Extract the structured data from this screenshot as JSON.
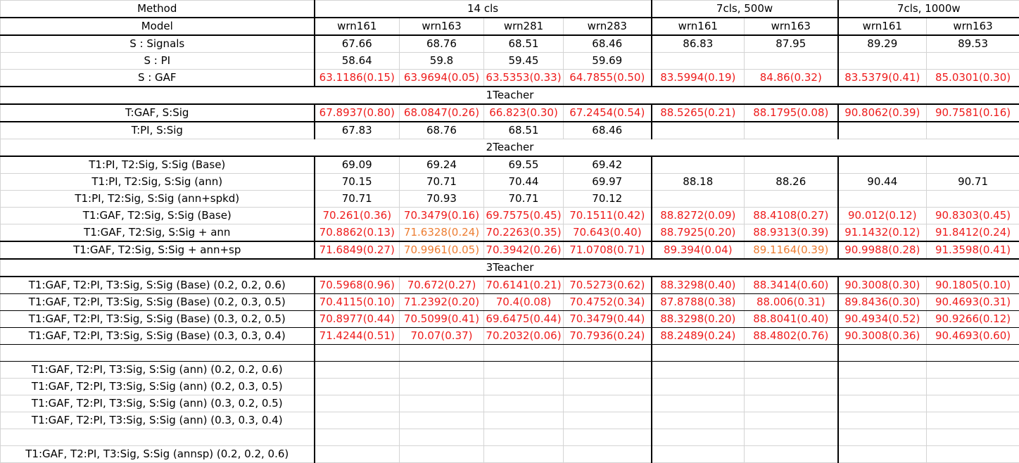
{
  "colors": {
    "red": "#ee1c1c",
    "orange": "#ed7d31",
    "black": "#000000"
  },
  "header": {
    "method_label": "Method",
    "group_14cls": "14 cls",
    "group_7cls_500w": "7cls, 500w",
    "group_7cls_1000w": "7cls, 1000w",
    "model_label": "Model",
    "models": [
      "wrn161",
      "wrn163",
      "wrn281",
      "wrn283",
      "wrn161",
      "wrn163",
      "wrn161",
      "wrn163"
    ]
  },
  "rows": [
    {
      "type": "data",
      "label": "S : Signals",
      "cells": [
        "67.66",
        "68.76",
        "68.51",
        "68.46",
        "86.83",
        "87.95",
        "89.29",
        "89.53"
      ],
      "colors": [
        "k",
        "k",
        "k",
        "k",
        "k",
        "k",
        "k",
        "k"
      ]
    },
    {
      "type": "data",
      "label": "S : PI",
      "cells": [
        "58.64",
        "59.8",
        "59.45",
        "59.69",
        "",
        "",
        "",
        ""
      ],
      "colors": [
        "k",
        "k",
        "k",
        "k",
        "k",
        "k",
        "k",
        "k"
      ]
    },
    {
      "type": "data",
      "label": "S : GAF",
      "cells": [
        "63.1186(0.15)",
        "63.9694(0.05)",
        "63.5353(0.33)",
        "64.7855(0.50)",
        "83.5994(0.19)",
        "84.86(0.32)",
        "83.5379(0.41)",
        "85.0301(0.30)"
      ],
      "colors": [
        "r",
        "r",
        "r",
        "r",
        "r",
        "r",
        "r",
        "r"
      ]
    },
    {
      "type": "section",
      "label": "1Teacher"
    },
    {
      "type": "data",
      "label": "T:GAF, S:Sig",
      "cells": [
        "67.8937(0.80)",
        "68.0847(0.26)",
        "66.823(0.30)",
        "67.2454(0.54)",
        "88.5265(0.21)",
        "88.1795(0.08)",
        "90.8062(0.39)",
        "90.7581(0.16)"
      ],
      "colors": [
        "r",
        "r",
        "r",
        "r",
        "r",
        "r",
        "r",
        "r"
      ]
    },
    {
      "type": "data",
      "label": "T:PI, S:Sig",
      "cells": [
        "67.83",
        "68.76",
        "68.51",
        "68.46",
        "",
        "",
        "",
        ""
      ],
      "colors": [
        "k",
        "k",
        "k",
        "k",
        "k",
        "k",
        "k",
        "k"
      ]
    },
    {
      "type": "section",
      "label": "2Teacher"
    },
    {
      "type": "data",
      "label": "T1:PI, T2:Sig, S:Sig (Base)",
      "cells": [
        "69.09",
        "69.24",
        "69.55",
        "69.42",
        "",
        "",
        "",
        ""
      ],
      "colors": [
        "k",
        "k",
        "k",
        "k",
        "k",
        "k",
        "k",
        "k"
      ]
    },
    {
      "type": "data",
      "label": "T1:PI, T2:Sig, S:Sig (ann)",
      "cells": [
        "70.15",
        "70.71",
        "70.44",
        "69.97",
        "88.18",
        "88.26",
        "90.44",
        "90.71"
      ],
      "colors": [
        "k",
        "k",
        "k",
        "k",
        "k",
        "k",
        "k",
        "k"
      ]
    },
    {
      "type": "data",
      "label": "T1:PI, T2:Sig, S:Sig (ann+spkd)",
      "cells": [
        "70.71",
        "70.93",
        "70.71",
        "70.12",
        "",
        "",
        "",
        ""
      ],
      "colors": [
        "k",
        "k",
        "k",
        "k",
        "k",
        "k",
        "k",
        "k"
      ]
    },
    {
      "type": "data",
      "label": "T1:GAF, T2:Sig, S:Sig (Base)",
      "cells": [
        "70.261(0.36)",
        "70.3479(0.16)",
        "69.7575(0.45)",
        "70.1511(0.42)",
        "88.8272(0.09)",
        "88.4108(0.27)",
        "90.012(0.12)",
        "90.8303(0.45)"
      ],
      "colors": [
        "r",
        "r",
        "r",
        "r",
        "r",
        "r",
        "r",
        "r"
      ]
    },
    {
      "type": "data",
      "label": "T1:GAF, T2:Sig, S:Sig + ann",
      "cells": [
        "70.8862(0.13)",
        "71.6328(0.24)",
        "70.2263(0.35)",
        "70.643(0.40)",
        "88.7925(0.20)",
        "88.9313(0.39)",
        "91.1432(0.12)",
        "91.8412(0.24)"
      ],
      "colors": [
        "r",
        "o",
        "r",
        "r",
        "r",
        "r",
        "r",
        "r"
      ]
    },
    {
      "type": "data",
      "label": "T1:GAF, T2:Sig, S:Sig + ann+sp",
      "cells": [
        "71.6849(0.27)",
        "70.9961(0.05)",
        "70.3942(0.26)",
        "71.0708(0.71)",
        "89.394(0.04)",
        "89.1164(0.39)",
        "90.9988(0.28)",
        "91.3598(0.41)"
      ],
      "colors": [
        "r",
        "o",
        "r",
        "r",
        "r",
        "o",
        "r",
        "r"
      ]
    },
    {
      "type": "section",
      "label": "3Teacher"
    },
    {
      "type": "data",
      "label": "T1:GAF, T2:PI, T3:Sig, S:Sig (Base) (0.2, 0.2, 0.6)",
      "cells": [
        "70.5968(0.96)",
        "70.672(0.27)",
        "70.6141(0.21)",
        "70.5273(0.62)",
        "88.3298(0.40)",
        "88.3414(0.60)",
        "90.3008(0.30)",
        "90.1805(0.10)"
      ],
      "colors": [
        "r",
        "r",
        "r",
        "r",
        "r",
        "r",
        "r",
        "r"
      ]
    },
    {
      "type": "data",
      "label": "T1:GAF, T2:PI, T3:Sig, S:Sig (Base) (0.2, 0.3, 0.5)",
      "cells": [
        "70.4115(0.10)",
        "71.2392(0.20)",
        "70.4(0.08)",
        "70.4752(0.34)",
        "87.8788(0.38)",
        "88.006(0.31)",
        "89.8436(0.30)",
        "90.4693(0.31)"
      ],
      "colors": [
        "r",
        "r",
        "r",
        "r",
        "r",
        "r",
        "r",
        "r"
      ]
    },
    {
      "type": "data",
      "label": "T1:GAF, T2:PI, T3:Sig, S:Sig (Base) (0.3, 0.2, 0.5)",
      "cells": [
        "70.8977(0.44)",
        "70.5099(0.41)",
        "69.6475(0.44)",
        "70.3479(0.44)",
        "88.3298(0.20)",
        "88.8041(0.40)",
        "90.4934(0.52)",
        "90.9266(0.12)"
      ],
      "colors": [
        "r",
        "r",
        "r",
        "r",
        "r",
        "r",
        "r",
        "r"
      ]
    },
    {
      "type": "data",
      "label": "T1:GAF, T2:PI, T3:Sig, S:Sig (Base) (0.3, 0.3, 0.4)",
      "cells": [
        "71.4244(0.51)",
        "70.07(0.37)",
        "70.2032(0.06)",
        "70.7936(0.24)",
        "88.2489(0.24)",
        "88.4802(0.76)",
        "90.3008(0.36)",
        "90.4693(0.60)"
      ],
      "colors": [
        "r",
        "r",
        "r",
        "r",
        "r",
        "r",
        "r",
        "r"
      ]
    },
    {
      "type": "data",
      "label": "",
      "cells": [
        "",
        "",
        "",
        "",
        "",
        "",
        "",
        ""
      ],
      "colors": [
        "k",
        "k",
        "k",
        "k",
        "k",
        "k",
        "k",
        "k"
      ]
    },
    {
      "type": "data",
      "label": "T1:GAF, T2:PI, T3:Sig, S:Sig (ann) (0.2, 0.2, 0.6)",
      "cells": [
        "",
        "",
        "",
        "",
        "",
        "",
        "",
        ""
      ],
      "colors": [
        "k",
        "k",
        "k",
        "k",
        "k",
        "k",
        "k",
        "k"
      ]
    },
    {
      "type": "data",
      "label": "T1:GAF, T2:PI, T3:Sig, S:Sig (ann) (0.2, 0.3, 0.5)",
      "cells": [
        "",
        "",
        "",
        "",
        "",
        "",
        "",
        ""
      ],
      "colors": [
        "k",
        "k",
        "k",
        "k",
        "k",
        "k",
        "k",
        "k"
      ]
    },
    {
      "type": "data",
      "label": "T1:GAF, T2:PI, T3:Sig, S:Sig (ann) (0.3, 0.2, 0.5)",
      "cells": [
        "",
        "",
        "",
        "",
        "",
        "",
        "",
        ""
      ],
      "colors": [
        "k",
        "k",
        "k",
        "k",
        "k",
        "k",
        "k",
        "k"
      ]
    },
    {
      "type": "data",
      "label": "T1:GAF, T2:PI, T3:Sig, S:Sig (ann) (0.3, 0.3, 0.4)",
      "cells": [
        "",
        "",
        "",
        "",
        "",
        "",
        "",
        ""
      ],
      "colors": [
        "k",
        "k",
        "k",
        "k",
        "k",
        "k",
        "k",
        "k"
      ]
    },
    {
      "type": "data",
      "label": "",
      "cells": [
        "",
        "",
        "",
        "",
        "",
        "",
        "",
        ""
      ],
      "colors": [
        "k",
        "k",
        "k",
        "k",
        "k",
        "k",
        "k",
        "k"
      ]
    },
    {
      "type": "data",
      "label": "T1:GAF, T2:PI, T3:Sig, S:Sig (annsp) (0.2, 0.2, 0.6)",
      "cells": [
        "",
        "",
        "",
        "",
        "",
        "",
        "",
        ""
      ],
      "colors": [
        "k",
        "k",
        "k",
        "k",
        "k",
        "k",
        "k",
        "k"
      ]
    }
  ]
}
